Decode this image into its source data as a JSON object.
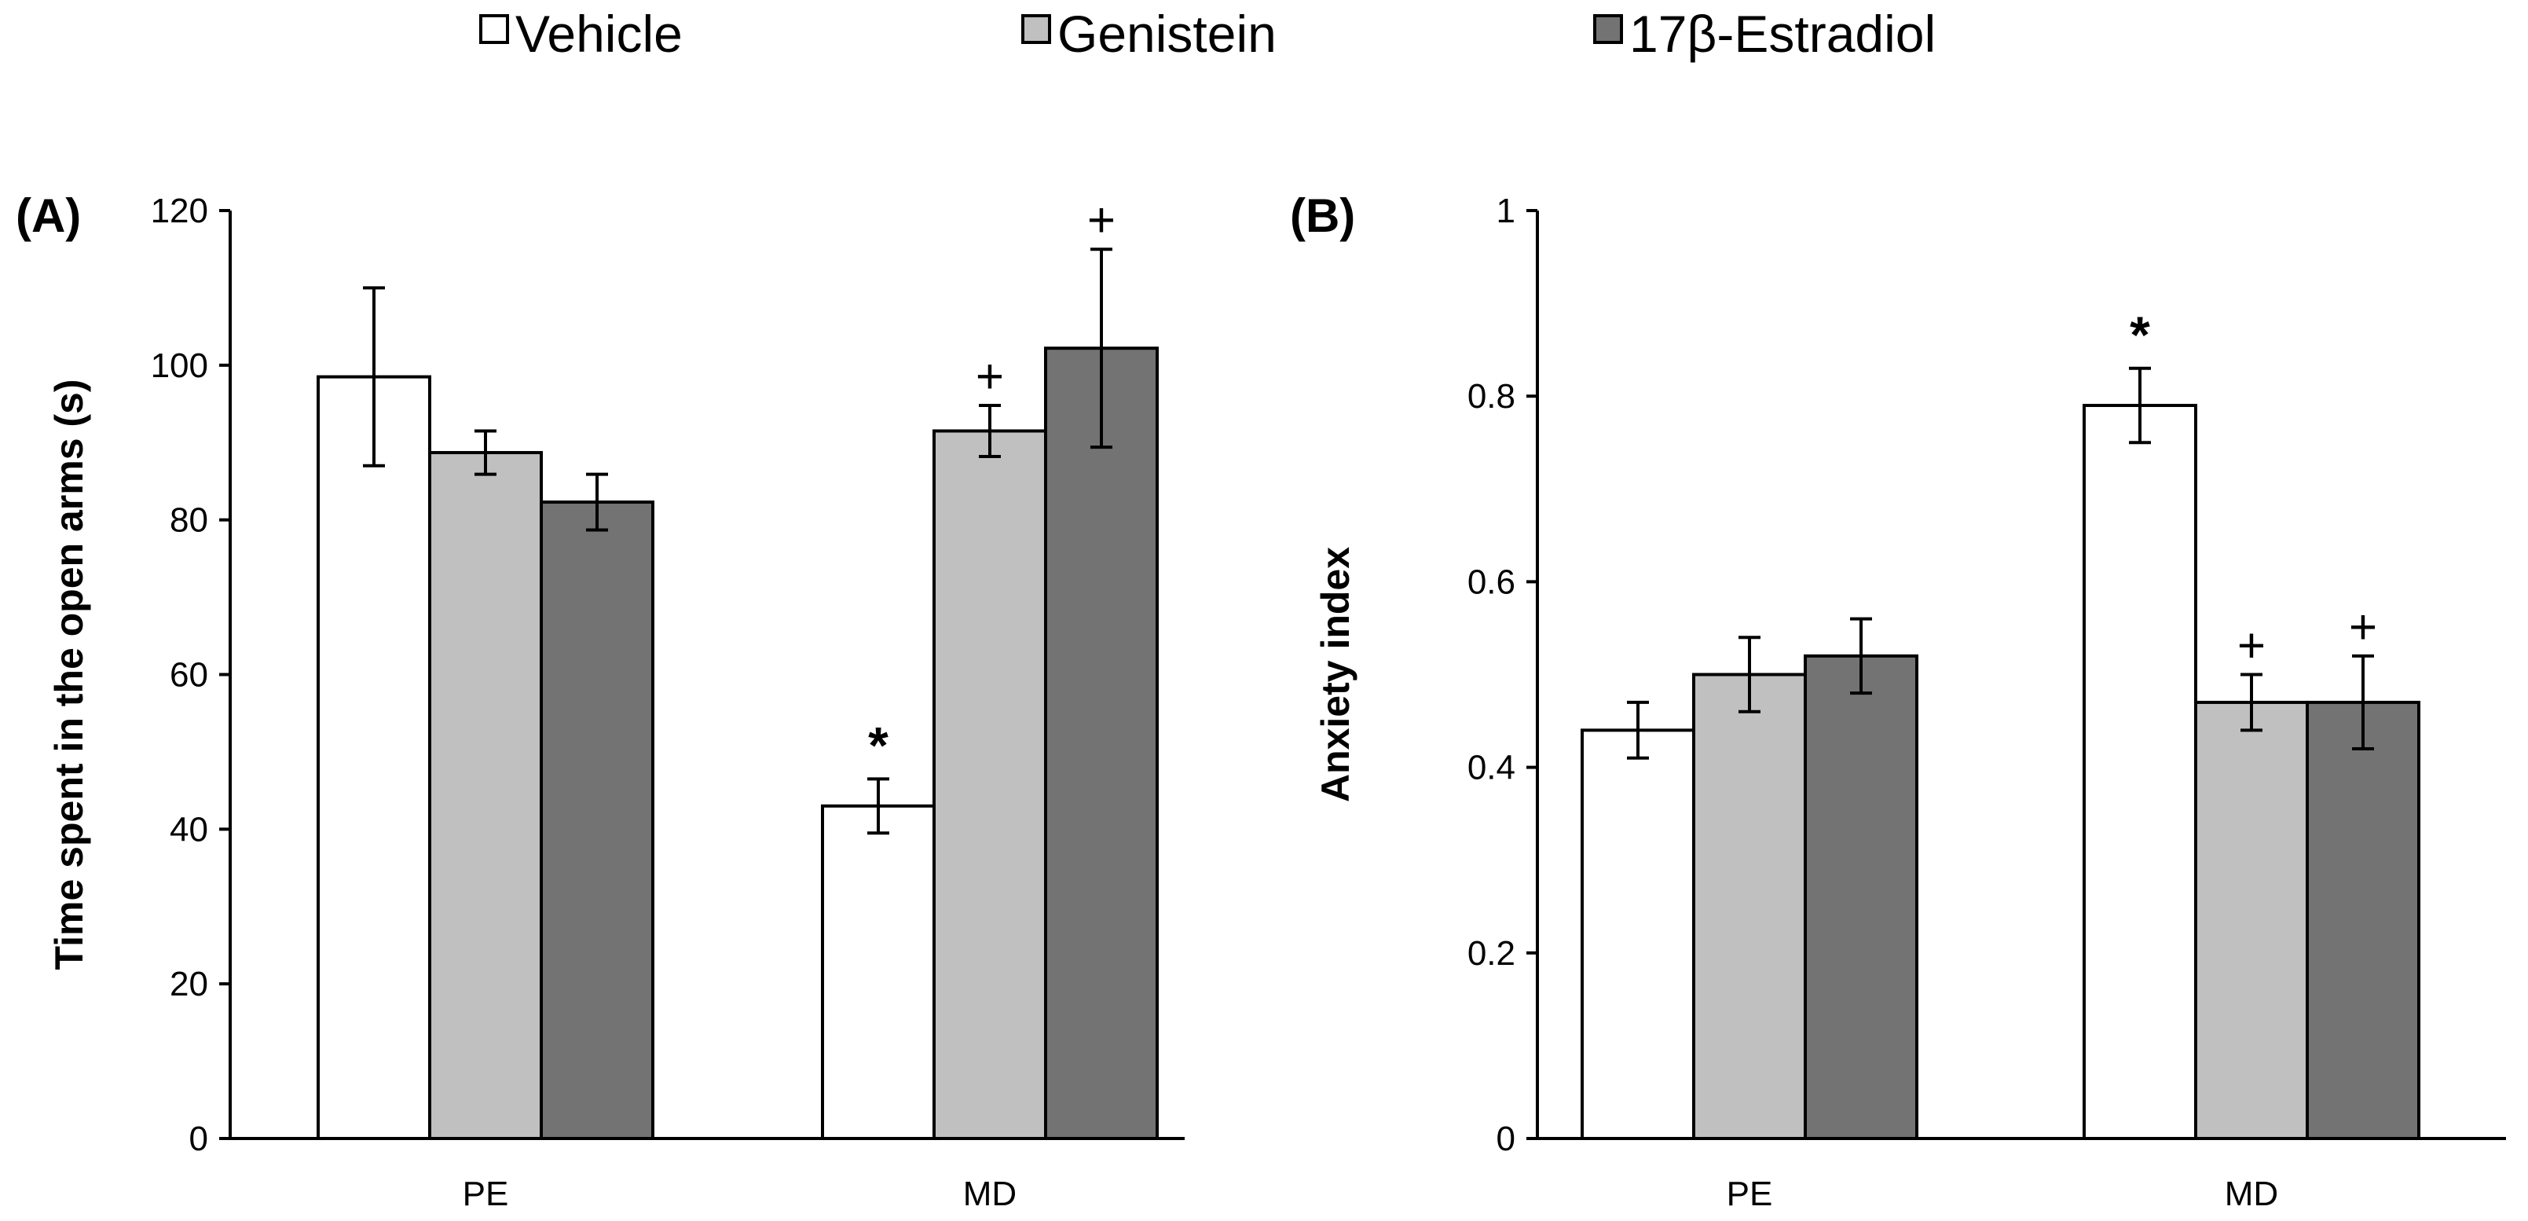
{
  "legend": [
    {
      "name": "Vehicle",
      "color": "#ffffff"
    },
    {
      "name": "Genistein",
      "color": "#c0c0c0"
    },
    {
      "name": "17β-Estradiol",
      "color": "#737373"
    }
  ],
  "chart_data": [
    {
      "type": "bar",
      "panel_label": "(A)",
      "title": "",
      "xlabel": "",
      "ylabel": "Time spent in the open arms (s)",
      "categories": [
        "PE",
        "MD"
      ],
      "ylim": [
        0,
        120
      ],
      "yticks": [
        "0",
        "20",
        "40",
        "60",
        "80",
        "100",
        "120"
      ],
      "series": [
        {
          "name": "Vehicle",
          "color": "#ffffff",
          "values": [
            98.5,
            43
          ],
          "errors": [
            11.5,
            3.5
          ],
          "marks": [
            "",
            "*"
          ]
        },
        {
          "name": "Genistein",
          "color": "#c0c0c0",
          "values": [
            88.7,
            91.5
          ],
          "errors": [
            2.8,
            3.3
          ],
          "marks": [
            "",
            "+"
          ]
        },
        {
          "name": "17β-Estradiol",
          "color": "#737373",
          "values": [
            82.3,
            102.2
          ],
          "errors": [
            3.6,
            12.8
          ],
          "marks": [
            "",
            "+"
          ]
        }
      ]
    },
    {
      "type": "bar",
      "panel_label": "(B)",
      "title": "",
      "xlabel": "",
      "ylabel": "Anxiety index",
      "categories": [
        "PE",
        "MD"
      ],
      "ylim": [
        0,
        1
      ],
      "yticks": [
        "0",
        "0.2",
        "0.4",
        "0.6",
        "0.8",
        "1"
      ],
      "series": [
        {
          "name": "Vehicle",
          "color": "#ffffff",
          "values": [
            0.44,
            0.79
          ],
          "errors": [
            0.03,
            0.04
          ],
          "marks": [
            "",
            "*"
          ]
        },
        {
          "name": "Genistein",
          "color": "#c0c0c0",
          "values": [
            0.5,
            0.47
          ],
          "errors": [
            0.04,
            0.03
          ],
          "marks": [
            "",
            "+"
          ]
        },
        {
          "name": "17β-Estradiol",
          "color": "#737373",
          "values": [
            0.52,
            0.47
          ],
          "errors": [
            0.04,
            0.05
          ],
          "marks": [
            "",
            "+"
          ]
        }
      ]
    }
  ]
}
